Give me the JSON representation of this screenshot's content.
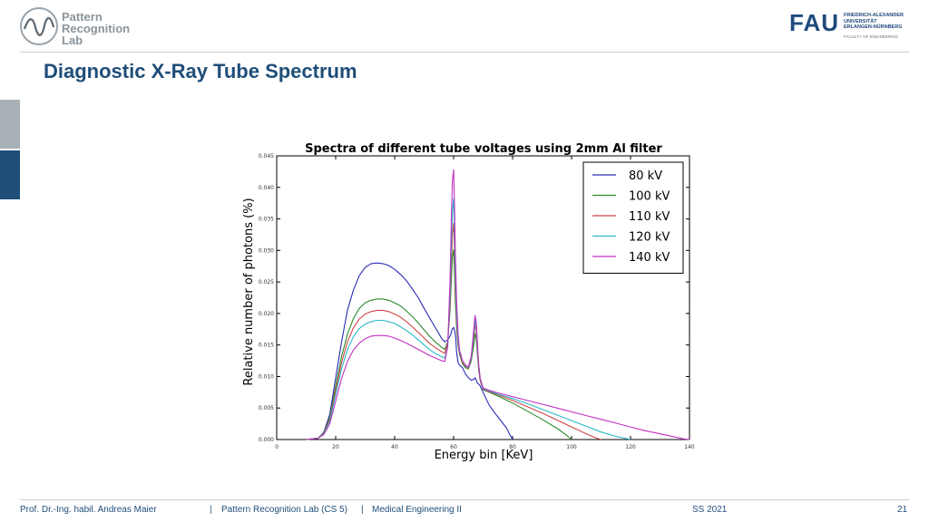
{
  "header": {
    "lab_logo": {
      "line1": "Pattern",
      "line2": "Recognition",
      "line3": "Lab"
    },
    "fau_logo": {
      "mark": "FAU",
      "line1": "FRIEDRICH-ALEXANDER",
      "line2": "UNIVERSITÄT",
      "line3": "ERLANGEN-NÜRNBERG",
      "faculty": "FACULTY OF ENGINEERING"
    }
  },
  "slide": {
    "title": "Diagnostic X-Ray Tube Spectrum"
  },
  "footer": {
    "author": "Prof. Dr.-Ing. habil. Andreas Maier",
    "sep1": "|",
    "lab": "Pattern Recognition Lab (CS 5)",
    "sep2": "|",
    "course": "Medical Engineering II",
    "term": "SS 2021",
    "page": "21"
  },
  "colors": {
    "accent": "#1f4e79",
    "grey": "#a8b0b5"
  },
  "chart_data": {
    "type": "line",
    "title": "Spectra of different tube voltages using 2mm Al filter",
    "xlabel": "Energy bin [KeV]",
    "ylabel": "Relative number of photons (%)",
    "xlim": [
      0,
      140
    ],
    "ylim": [
      0,
      0.045
    ],
    "xticks": [
      "0",
      "20",
      "40",
      "60",
      "80",
      "100",
      "120",
      "140"
    ],
    "yticks": [
      "0.000",
      "0.005",
      "0.010",
      "0.015",
      "0.020",
      "0.025",
      "0.030",
      "0.035",
      "0.040",
      "0.045"
    ],
    "grid": false,
    "legend_position": "top-right",
    "series": [
      {
        "name": "80 kV",
        "color": "#2a2ab5",
        "x": [
          10,
          14,
          16,
          18,
          20,
          22,
          24,
          26,
          28,
          30,
          32,
          34,
          36,
          38,
          40,
          42,
          44,
          46,
          48,
          50,
          52,
          54,
          56,
          57,
          58,
          59,
          59.3,
          59.6,
          60,
          60.3,
          60.7,
          61,
          61.5,
          62,
          63,
          64,
          65,
          66,
          67,
          67.3,
          67.7,
          68,
          68.5,
          69,
          70,
          72,
          74,
          76,
          78,
          79,
          80
        ],
        "y": [
          0,
          0.0002,
          0.0012,
          0.004,
          0.0098,
          0.0155,
          0.0205,
          0.0237,
          0.026,
          0.0273,
          0.0279,
          0.028,
          0.0279,
          0.0276,
          0.027,
          0.0262,
          0.0252,
          0.0239,
          0.0225,
          0.0208,
          0.0192,
          0.0176,
          0.016,
          0.0155,
          0.0158,
          0.0166,
          0.0172,
          0.0176,
          0.0178,
          0.0173,
          0.0162,
          0.0138,
          0.0122,
          0.0118,
          0.0114,
          0.0104,
          0.0098,
          0.0094,
          0.0096,
          0.0098,
          0.0094,
          0.009,
          0.0088,
          0.0085,
          0.0075,
          0.0055,
          0.0042,
          0.003,
          0.0018,
          0.0008,
          0
        ]
      },
      {
        "name": "100 kV",
        "color": "#2a8a2a",
        "x": [
          10,
          14,
          16,
          18,
          20,
          22,
          24,
          26,
          28,
          30,
          32,
          34,
          36,
          38,
          40,
          42,
          44,
          46,
          48,
          50,
          52,
          54,
          56,
          57,
          58,
          58.8,
          59.2,
          59.6,
          60,
          60.3,
          60.6,
          61,
          61.5,
          62,
          63,
          64,
          65,
          66,
          67,
          67.3,
          67.7,
          68,
          68.5,
          69,
          70,
          72,
          75,
          80,
          85,
          90,
          95,
          98,
          100
        ],
        "y": [
          0,
          0.0002,
          0.0011,
          0.0035,
          0.0085,
          0.0132,
          0.0167,
          0.0192,
          0.0208,
          0.0217,
          0.0221,
          0.0223,
          0.0223,
          0.0221,
          0.0217,
          0.0212,
          0.0204,
          0.0195,
          0.0185,
          0.0174,
          0.0163,
          0.0154,
          0.0146,
          0.0143,
          0.0155,
          0.0205,
          0.025,
          0.029,
          0.0301,
          0.0265,
          0.0215,
          0.0175,
          0.015,
          0.0135,
          0.012,
          0.0114,
          0.0112,
          0.0125,
          0.0155,
          0.0168,
          0.016,
          0.014,
          0.011,
          0.0093,
          0.0079,
          0.0075,
          0.0069,
          0.0058,
          0.0045,
          0.0032,
          0.0018,
          0.0008,
          0
        ]
      },
      {
        "name": "110 kV",
        "color": "#d04545",
        "x": [
          10,
          14,
          16,
          18,
          20,
          22,
          24,
          26,
          28,
          30,
          32,
          34,
          36,
          38,
          40,
          42,
          44,
          46,
          48,
          50,
          52,
          54,
          56,
          57,
          58,
          58.8,
          59.2,
          59.6,
          60,
          60.3,
          60.6,
          61,
          61.5,
          62,
          63,
          64,
          65,
          66,
          67,
          67.3,
          67.7,
          68,
          68.5,
          69,
          70,
          72,
          75,
          80,
          85,
          90,
          95,
          100,
          105,
          108,
          110
        ],
        "y": [
          0,
          0.0002,
          0.001,
          0.0032,
          0.0078,
          0.0122,
          0.0155,
          0.0177,
          0.0191,
          0.0199,
          0.0203,
          0.0205,
          0.0205,
          0.0203,
          0.0199,
          0.0194,
          0.0187,
          0.0179,
          0.017,
          0.0161,
          0.0152,
          0.0145,
          0.0139,
          0.0137,
          0.0152,
          0.0218,
          0.0275,
          0.0325,
          0.0343,
          0.03,
          0.0235,
          0.0185,
          0.0155,
          0.0138,
          0.0122,
          0.0116,
          0.0113,
          0.0128,
          0.0168,
          0.0183,
          0.0172,
          0.015,
          0.0115,
          0.0094,
          0.008,
          0.0076,
          0.0071,
          0.0062,
          0.0052,
          0.0042,
          0.0031,
          0.002,
          0.0009,
          0.0003,
          0
        ]
      },
      {
        "name": "120 kV",
        "color": "#2ab8c8",
        "x": [
          10,
          14,
          16,
          18,
          20,
          22,
          24,
          26,
          28,
          30,
          32,
          34,
          36,
          38,
          40,
          42,
          44,
          46,
          48,
          50,
          52,
          54,
          56,
          57,
          58,
          58.8,
          59.2,
          59.6,
          60,
          60.3,
          60.6,
          61,
          61.5,
          62,
          63,
          64,
          65,
          66,
          67,
          67.3,
          67.7,
          68,
          68.5,
          69,
          70,
          72,
          75,
          80,
          85,
          90,
          95,
          100,
          105,
          110,
          115,
          118,
          120
        ],
        "y": [
          0,
          0.0002,
          0.0009,
          0.0029,
          0.0071,
          0.0112,
          0.0143,
          0.0163,
          0.0176,
          0.0183,
          0.0187,
          0.0189,
          0.0189,
          0.0187,
          0.0184,
          0.0179,
          0.0173,
          0.0166,
          0.0158,
          0.015,
          0.0142,
          0.0136,
          0.0131,
          0.0129,
          0.0148,
          0.0232,
          0.0302,
          0.0362,
          0.0382,
          0.033,
          0.0258,
          0.0198,
          0.016,
          0.014,
          0.0124,
          0.0117,
          0.0114,
          0.013,
          0.0175,
          0.019,
          0.0178,
          0.0155,
          0.0118,
          0.0096,
          0.0081,
          0.0077,
          0.0072,
          0.0065,
          0.0057,
          0.0048,
          0.0039,
          0.003,
          0.0021,
          0.0012,
          0.0005,
          0.0002,
          0
        ]
      },
      {
        "name": "140 kV",
        "color": "#c030c0",
        "x": [
          10,
          14,
          16,
          18,
          20,
          22,
          24,
          26,
          28,
          30,
          32,
          34,
          36,
          38,
          40,
          42,
          44,
          46,
          48,
          50,
          52,
          54,
          56,
          57,
          58,
          58.8,
          59.2,
          59.6,
          60,
          60.3,
          60.6,
          61,
          61.5,
          62,
          63,
          64,
          65,
          66,
          67,
          67.3,
          67.7,
          68,
          68.5,
          69,
          70,
          72,
          75,
          80,
          85,
          90,
          95,
          100,
          105,
          110,
          115,
          120,
          125,
          130,
          135,
          138,
          140
        ],
        "y": [
          0,
          0.0002,
          0.0008,
          0.0025,
          0.0061,
          0.0097,
          0.0124,
          0.0142,
          0.0153,
          0.016,
          0.0164,
          0.0165,
          0.0165,
          0.0164,
          0.0161,
          0.0157,
          0.0153,
          0.0148,
          0.0143,
          0.0138,
          0.0133,
          0.0129,
          0.0125,
          0.0124,
          0.0148,
          0.0255,
          0.0345,
          0.041,
          0.0428,
          0.037,
          0.029,
          0.022,
          0.0168,
          0.0142,
          0.0125,
          0.0118,
          0.0115,
          0.0133,
          0.0185,
          0.0197,
          0.0185,
          0.016,
          0.012,
          0.0097,
          0.0082,
          0.0078,
          0.0074,
          0.0068,
          0.0062,
          0.0056,
          0.005,
          0.0044,
          0.0038,
          0.0032,
          0.0026,
          0.002,
          0.0014,
          0.0009,
          0.0004,
          0.0001,
          0
        ]
      }
    ]
  }
}
